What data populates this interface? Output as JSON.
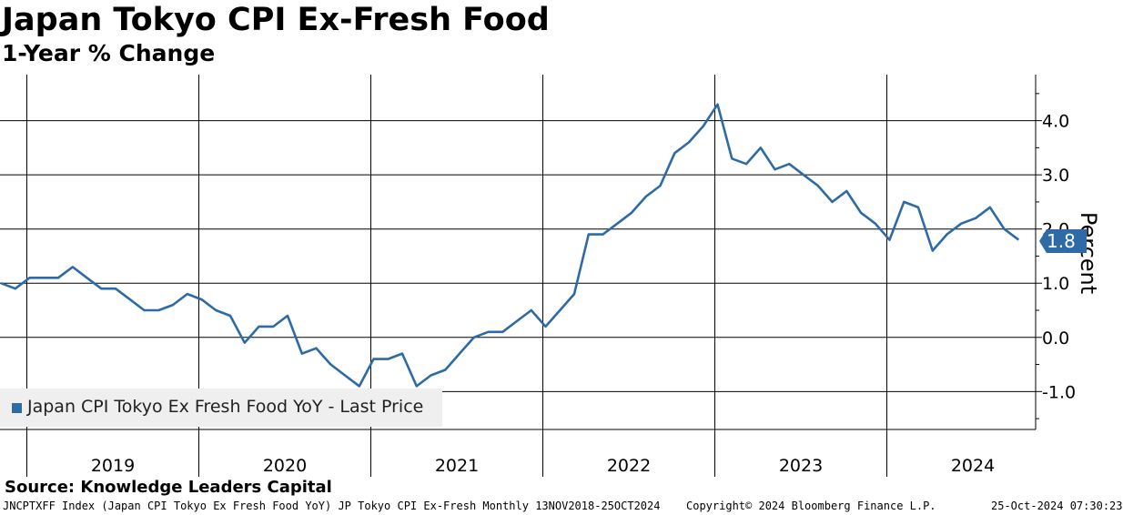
{
  "chart_data": {
    "type": "line",
    "title": "Japan Tokyo CPI Ex-Fresh Food",
    "subtitle": "1-Year % Change",
    "ylabel": "Percent",
    "ylim": [
      -1.7,
      4.85
    ],
    "yticks": [
      -1.0,
      0.0,
      1.0,
      2.0,
      3.0,
      4.0
    ],
    "ytick_labels": [
      "-1.0",
      "0.0",
      "1.0",
      "2.0",
      "3.0",
      "4.0"
    ],
    "x_labels": [
      "2019",
      "2020",
      "2021",
      "2022",
      "2023",
      "2024"
    ],
    "start": "2018-11",
    "frequency": "monthly",
    "series": [
      {
        "name": "Japan CPI Tokyo Ex Fresh Food YoY - Last Price",
        "color": "#2e6ba6",
        "last_value": "1.8",
        "values": [
          1.0,
          0.9,
          1.1,
          1.1,
          1.1,
          1.3,
          1.1,
          0.9,
          0.9,
          0.7,
          0.5,
          0.5,
          0.6,
          0.8,
          0.7,
          0.5,
          0.4,
          -0.1,
          0.2,
          0.2,
          0.4,
          -0.3,
          -0.2,
          -0.5,
          -0.7,
          -0.9,
          -0.4,
          -0.4,
          -0.3,
          -0.9,
          -0.7,
          -0.6,
          -0.3,
          0.0,
          0.1,
          0.1,
          0.3,
          0.5,
          0.2,
          0.5,
          0.8,
          1.9,
          1.9,
          2.1,
          2.3,
          2.6,
          2.8,
          3.4,
          3.6,
          3.9,
          4.3,
          3.3,
          3.2,
          3.5,
          3.1,
          3.2,
          3.0,
          2.8,
          2.5,
          2.7,
          2.3,
          2.1,
          1.8,
          2.5,
          2.4,
          1.6,
          1.9,
          2.1,
          2.2,
          2.4,
          2.0,
          1.8
        ]
      }
    ]
  },
  "source": "Source: Knowledge Leaders Capital",
  "footer": {
    "ticker": "JNCPTXFF Index (Japan CPI Tokyo Ex Fresh Food YoY) JP Tokyo CPI Ex-Fresh  Monthly 13NOV2018-25OCT2024",
    "copyright": "Copyright© 2024 Bloomberg Finance L.P.",
    "timestamp": "25-Oct-2024 07:30:23"
  }
}
